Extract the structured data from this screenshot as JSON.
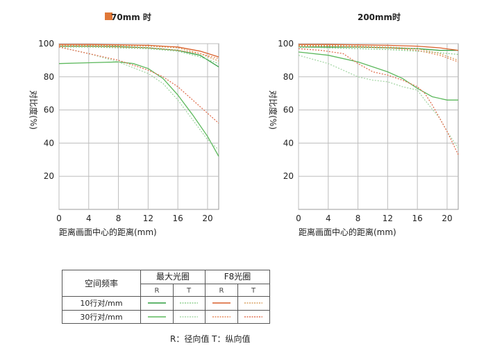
{
  "chart_data": [
    {
      "type": "line",
      "title": "70mm 时",
      "title_marker_color": "#e07838",
      "xlabel": "距离画面中心的距离(mm)",
      "ylabel": "对比度(%)",
      "xlim": [
        0,
        21.5
      ],
      "ylim": [
        0,
        100
      ],
      "xticks": [
        "0",
        "4",
        "8",
        "12",
        "16",
        "20"
      ],
      "yticks": [
        "100",
        "80",
        "60",
        "40",
        "20"
      ],
      "grid": true,
      "series": [
        {
          "key": "10R_max",
          "color": "#2e9e3e",
          "dash": false,
          "x": [
            0,
            4,
            8,
            12,
            16,
            19,
            21.5
          ],
          "y": [
            98.5,
            98.5,
            98.2,
            97.5,
            96,
            93,
            86
          ]
        },
        {
          "key": "10T_max",
          "color": "#8fcf8f",
          "dash": true,
          "x": [
            0,
            4,
            8,
            12,
            16,
            19,
            21.5
          ],
          "y": [
            98,
            98,
            97.5,
            97,
            95.5,
            92,
            88
          ]
        },
        {
          "key": "30R_max",
          "color": "#5cb85c",
          "dash": false,
          "x": [
            0,
            4,
            8,
            10,
            12,
            14,
            16,
            18,
            20,
            21.5
          ],
          "y": [
            88,
            88.5,
            89,
            88,
            85,
            79,
            69,
            57,
            44,
            32
          ]
        },
        {
          "key": "30T_max",
          "color": "#a6d6a6",
          "dash": true,
          "x": [
            0,
            4,
            8,
            12,
            14,
            16,
            18,
            20,
            21.5
          ],
          "y": [
            98,
            94,
            89,
            82,
            76,
            66,
            54,
            42,
            36
          ]
        },
        {
          "key": "10R_f8",
          "color": "#d95f2a",
          "dash": false,
          "x": [
            0,
            4,
            8,
            12,
            16,
            19,
            21.5
          ],
          "y": [
            99.5,
            99.5,
            99.3,
            99,
            98,
            95.5,
            92
          ]
        },
        {
          "key": "10T_f8",
          "color": "#d9a060",
          "dash": true,
          "x": [
            0,
            4,
            8,
            12,
            16,
            19,
            21.5
          ],
          "y": [
            99,
            99,
            98.8,
            98.5,
            97.5,
            94,
            89.5
          ]
        },
        {
          "key": "30R_f8",
          "color": "#e58a5a",
          "dash": true,
          "x": [
            0,
            4,
            8,
            12,
            16,
            19,
            21.5
          ],
          "y": [
            98.5,
            98.5,
            98,
            97.5,
            96,
            94,
            91
          ]
        },
        {
          "key": "30T_f8",
          "color": "#e07050",
          "dash": true,
          "x": [
            0,
            2,
            4,
            8,
            12,
            14,
            16,
            18,
            20,
            21.5
          ],
          "y": [
            98,
            96,
            94,
            90,
            84,
            80,
            74,
            66,
            58,
            52
          ]
        }
      ]
    },
    {
      "type": "line",
      "title": "200mm时",
      "xlabel": "距离画面中心的距离(mm)",
      "ylabel": "对比度(%)",
      "xlim": [
        0,
        21.5
      ],
      "ylim": [
        0,
        100
      ],
      "xticks": [
        "0",
        "4",
        "8",
        "12",
        "16",
        "20"
      ],
      "yticks": [
        "100",
        "80",
        "60",
        "40",
        "20"
      ],
      "grid": true,
      "series": [
        {
          "key": "10R_max",
          "color": "#2e9e3e",
          "dash": false,
          "x": [
            0,
            4,
            8,
            12,
            16,
            19,
            21.5
          ],
          "y": [
            98,
            98,
            98,
            97.5,
            97,
            96,
            96
          ]
        },
        {
          "key": "10T_max",
          "color": "#8fcf8f",
          "dash": true,
          "x": [
            0,
            4,
            8,
            12,
            16,
            19,
            21.5
          ],
          "y": [
            98,
            97.5,
            97,
            96.5,
            95.5,
            94.5,
            93.5
          ]
        },
        {
          "key": "30R_max",
          "color": "#5cb85c",
          "dash": false,
          "x": [
            0,
            4,
            8,
            12,
            14,
            16,
            18,
            20,
            21.5
          ],
          "y": [
            95,
            93,
            89,
            83,
            79,
            73,
            68,
            66,
            66
          ]
        },
        {
          "key": "30T_max",
          "color": "#a6d6a6",
          "dash": true,
          "x": [
            0,
            4,
            6,
            8,
            10,
            12,
            14,
            16,
            17,
            19,
            20,
            21.5
          ],
          "y": [
            93,
            88,
            84,
            80,
            78,
            77,
            74,
            72,
            66,
            55,
            47,
            37
          ]
        },
        {
          "key": "10R_f8",
          "color": "#d95f2a",
          "dash": false,
          "x": [
            0,
            4,
            8,
            12,
            16,
            19,
            21.5
          ],
          "y": [
            99.5,
            99.5,
            99.3,
            99,
            98.5,
            97.5,
            96
          ]
        },
        {
          "key": "10T_f8",
          "color": "#d9a060",
          "dash": true,
          "x": [
            0,
            4,
            8,
            12,
            16,
            19,
            21.5
          ],
          "y": [
            99,
            99,
            98.5,
            98,
            97,
            94,
            90
          ]
        },
        {
          "key": "30R_f8",
          "color": "#e58a5a",
          "dash": true,
          "x": [
            0,
            4,
            8,
            12,
            16,
            19,
            21.5
          ],
          "y": [
            98.5,
            98.5,
            98,
            97.5,
            96,
            93,
            89
          ]
        },
        {
          "key": "30T_f8",
          "color": "#e07050",
          "dash": true,
          "x": [
            0,
            3,
            6,
            8,
            10,
            12,
            14,
            16,
            17,
            18,
            19,
            20,
            21.5
          ],
          "y": [
            97,
            96,
            94,
            88,
            83,
            81,
            78,
            74,
            70,
            63,
            55,
            47,
            33
          ]
        }
      ]
    }
  ],
  "legend_table": {
    "header_freq": "空间频率",
    "header_max": "最大光圈",
    "header_f8": "F8光圈",
    "sub_R": "R",
    "sub_T": "T",
    "rows": [
      {
        "label": "10行对/mm",
        "swatches": [
          "10R_max",
          "10T_max",
          "10R_f8",
          "10T_f8"
        ]
      },
      {
        "label": "30行对/mm",
        "swatches": [
          "30R_max",
          "30T_max",
          "30R_f8",
          "30T_f8"
        ]
      }
    ],
    "swatch_colors": {
      "10R_max": "#2e9e3e",
      "10T_max": "#8fcf8f",
      "10R_f8": "#d95f2a",
      "10T_f8": "#d9a060",
      "30R_max": "#5cb85c",
      "30T_max": "#a6d6a6",
      "30R_f8": "#e58a5a",
      "30T_f8": "#e07050"
    }
  },
  "note": "R：径向值  T：纵向值"
}
